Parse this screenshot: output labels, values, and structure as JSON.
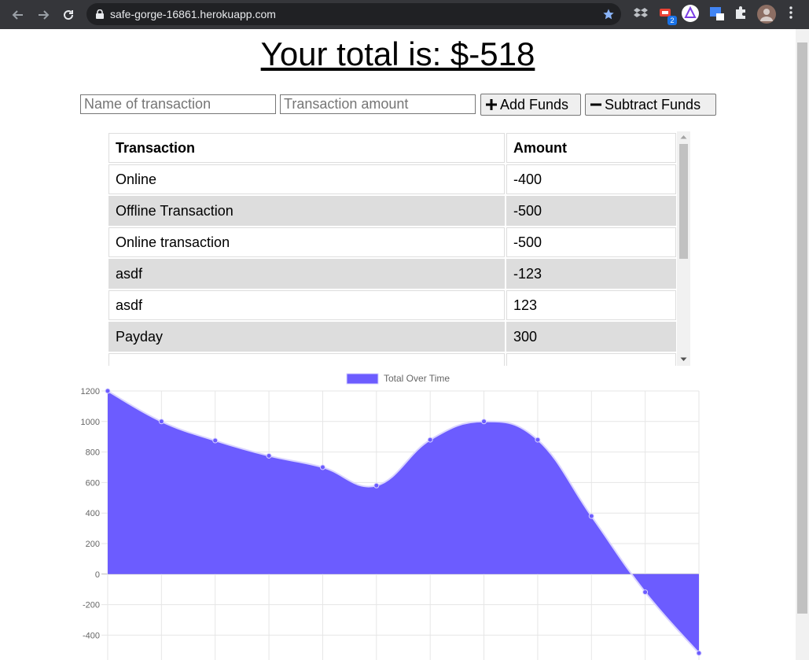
{
  "browser": {
    "url": "safe-gorge-16861.herokuapp.com",
    "extension_badge": "2"
  },
  "page": {
    "title": "Your total is: $-518"
  },
  "form": {
    "name_placeholder": "Name of transaction",
    "amount_placeholder": "Transaction amount",
    "add_label": "Add Funds",
    "subtract_label": "Subtract Funds"
  },
  "table": {
    "headers": [
      "Transaction",
      "Amount"
    ],
    "rows": [
      {
        "name": "Online",
        "amount": "-400"
      },
      {
        "name": "Offline Transaction",
        "amount": "-500"
      },
      {
        "name": "Online transaction",
        "amount": "-500"
      },
      {
        "name": "asdf",
        "amount": "-123"
      },
      {
        "name": "asdf",
        "amount": "123"
      },
      {
        "name": "Payday",
        "amount": "300"
      }
    ]
  },
  "chart_data": {
    "type": "area",
    "series": [
      {
        "name": "Total Over Time",
        "color": "#6c5cff",
        "values": [
          1200,
          1000,
          875,
          775,
          700,
          580,
          880,
          1000,
          880,
          380,
          -118,
          -518
        ]
      }
    ],
    "ylim": [
      -500,
      1200
    ],
    "yticks": [
      1200,
      1000,
      800,
      600,
      400,
      200,
      0,
      -200,
      -400
    ],
    "grid": true,
    "legend": "top"
  }
}
